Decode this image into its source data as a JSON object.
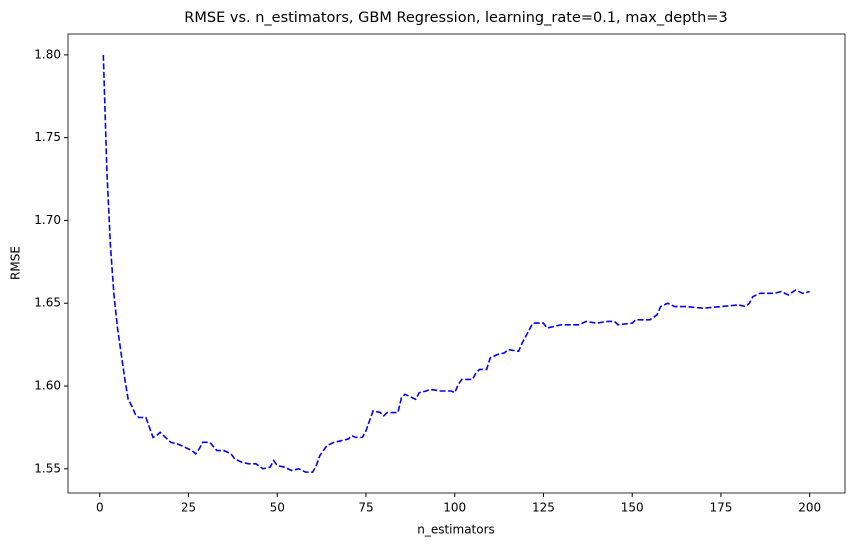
{
  "chart_data": {
    "type": "line",
    "title": "RMSE vs. n_estimators, GBM Regression, learning_rate=0.1, max_depth=3",
    "xlabel": "n_estimators",
    "ylabel": "RMSE",
    "x": [
      1,
      2,
      3,
      4,
      5,
      6,
      7,
      8,
      9,
      10,
      11,
      12,
      13,
      14,
      15,
      16,
      17,
      18,
      19,
      20,
      22,
      24,
      26,
      27,
      28,
      29,
      31,
      33,
      35,
      37,
      38,
      40,
      42,
      44,
      46,
      48,
      49,
      50,
      52,
      54,
      56,
      58,
      60,
      61,
      62,
      64,
      66,
      68,
      70,
      71,
      72,
      74,
      75,
      77,
      79,
      80,
      81,
      84,
      85,
      86,
      89,
      90,
      92,
      93,
      96,
      99,
      100,
      101,
      102,
      105,
      106,
      107,
      109,
      110,
      112,
      114,
      115,
      118,
      119,
      120,
      122,
      125,
      126,
      128,
      130,
      133,
      135,
      137,
      140,
      143,
      145,
      146,
      150,
      151,
      155,
      157,
      158,
      160,
      162,
      165,
      170,
      175,
      180,
      182,
      183,
      184,
      186,
      190,
      192,
      194,
      196,
      198,
      200
    ],
    "series": [
      {
        "name": "RMSE",
        "color": "#0000ff",
        "values": [
          1.8,
          1.73,
          1.685,
          1.655,
          1.635,
          1.62,
          1.605,
          1.592,
          1.588,
          1.583,
          1.581,
          1.581,
          1.581,
          1.575,
          1.569,
          1.57,
          1.572,
          1.57,
          1.568,
          1.566,
          1.565,
          1.563,
          1.561,
          1.559,
          1.562,
          1.566,
          1.566,
          1.561,
          1.561,
          1.559,
          1.556,
          1.554,
          1.553,
          1.553,
          1.55,
          1.551,
          1.555,
          1.552,
          1.551,
          1.549,
          1.55,
          1.548,
          1.548,
          1.552,
          1.558,
          1.564,
          1.566,
          1.567,
          1.568,
          1.57,
          1.569,
          1.569,
          1.573,
          1.585,
          1.584,
          1.582,
          1.584,
          1.584,
          1.593,
          1.595,
          1.592,
          1.596,
          1.597,
          1.598,
          1.597,
          1.597,
          1.596,
          1.601,
          1.604,
          1.604,
          1.608,
          1.61,
          1.61,
          1.617,
          1.619,
          1.62,
          1.622,
          1.621,
          1.626,
          1.63,
          1.638,
          1.638,
          1.635,
          1.636,
          1.637,
          1.637,
          1.637,
          1.639,
          1.638,
          1.639,
          1.639,
          1.637,
          1.638,
          1.64,
          1.64,
          1.643,
          1.648,
          1.65,
          1.648,
          1.648,
          1.647,
          1.648,
          1.649,
          1.648,
          1.65,
          1.654,
          1.656,
          1.656,
          1.657,
          1.655,
          1.658,
          1.656,
          1.657
        ]
      }
    ],
    "xlim": [
      -8.95,
      209.95
    ],
    "xticks": [
      0,
      25,
      50,
      75,
      100,
      125,
      150,
      175,
      200
    ],
    "ylim": [
      1.5354,
      1.8126
    ],
    "yticks": [
      {
        "value": 1.55,
        "label": "1.55"
      },
      {
        "value": 1.6,
        "label": "1.60"
      },
      {
        "value": 1.65,
        "label": "1.65"
      },
      {
        "value": 1.7,
        "label": "1.70"
      },
      {
        "value": 1.75,
        "label": "1.75"
      },
      {
        "value": 1.8,
        "label": "1.80"
      }
    ],
    "line_style": "dashed",
    "grid": false
  }
}
